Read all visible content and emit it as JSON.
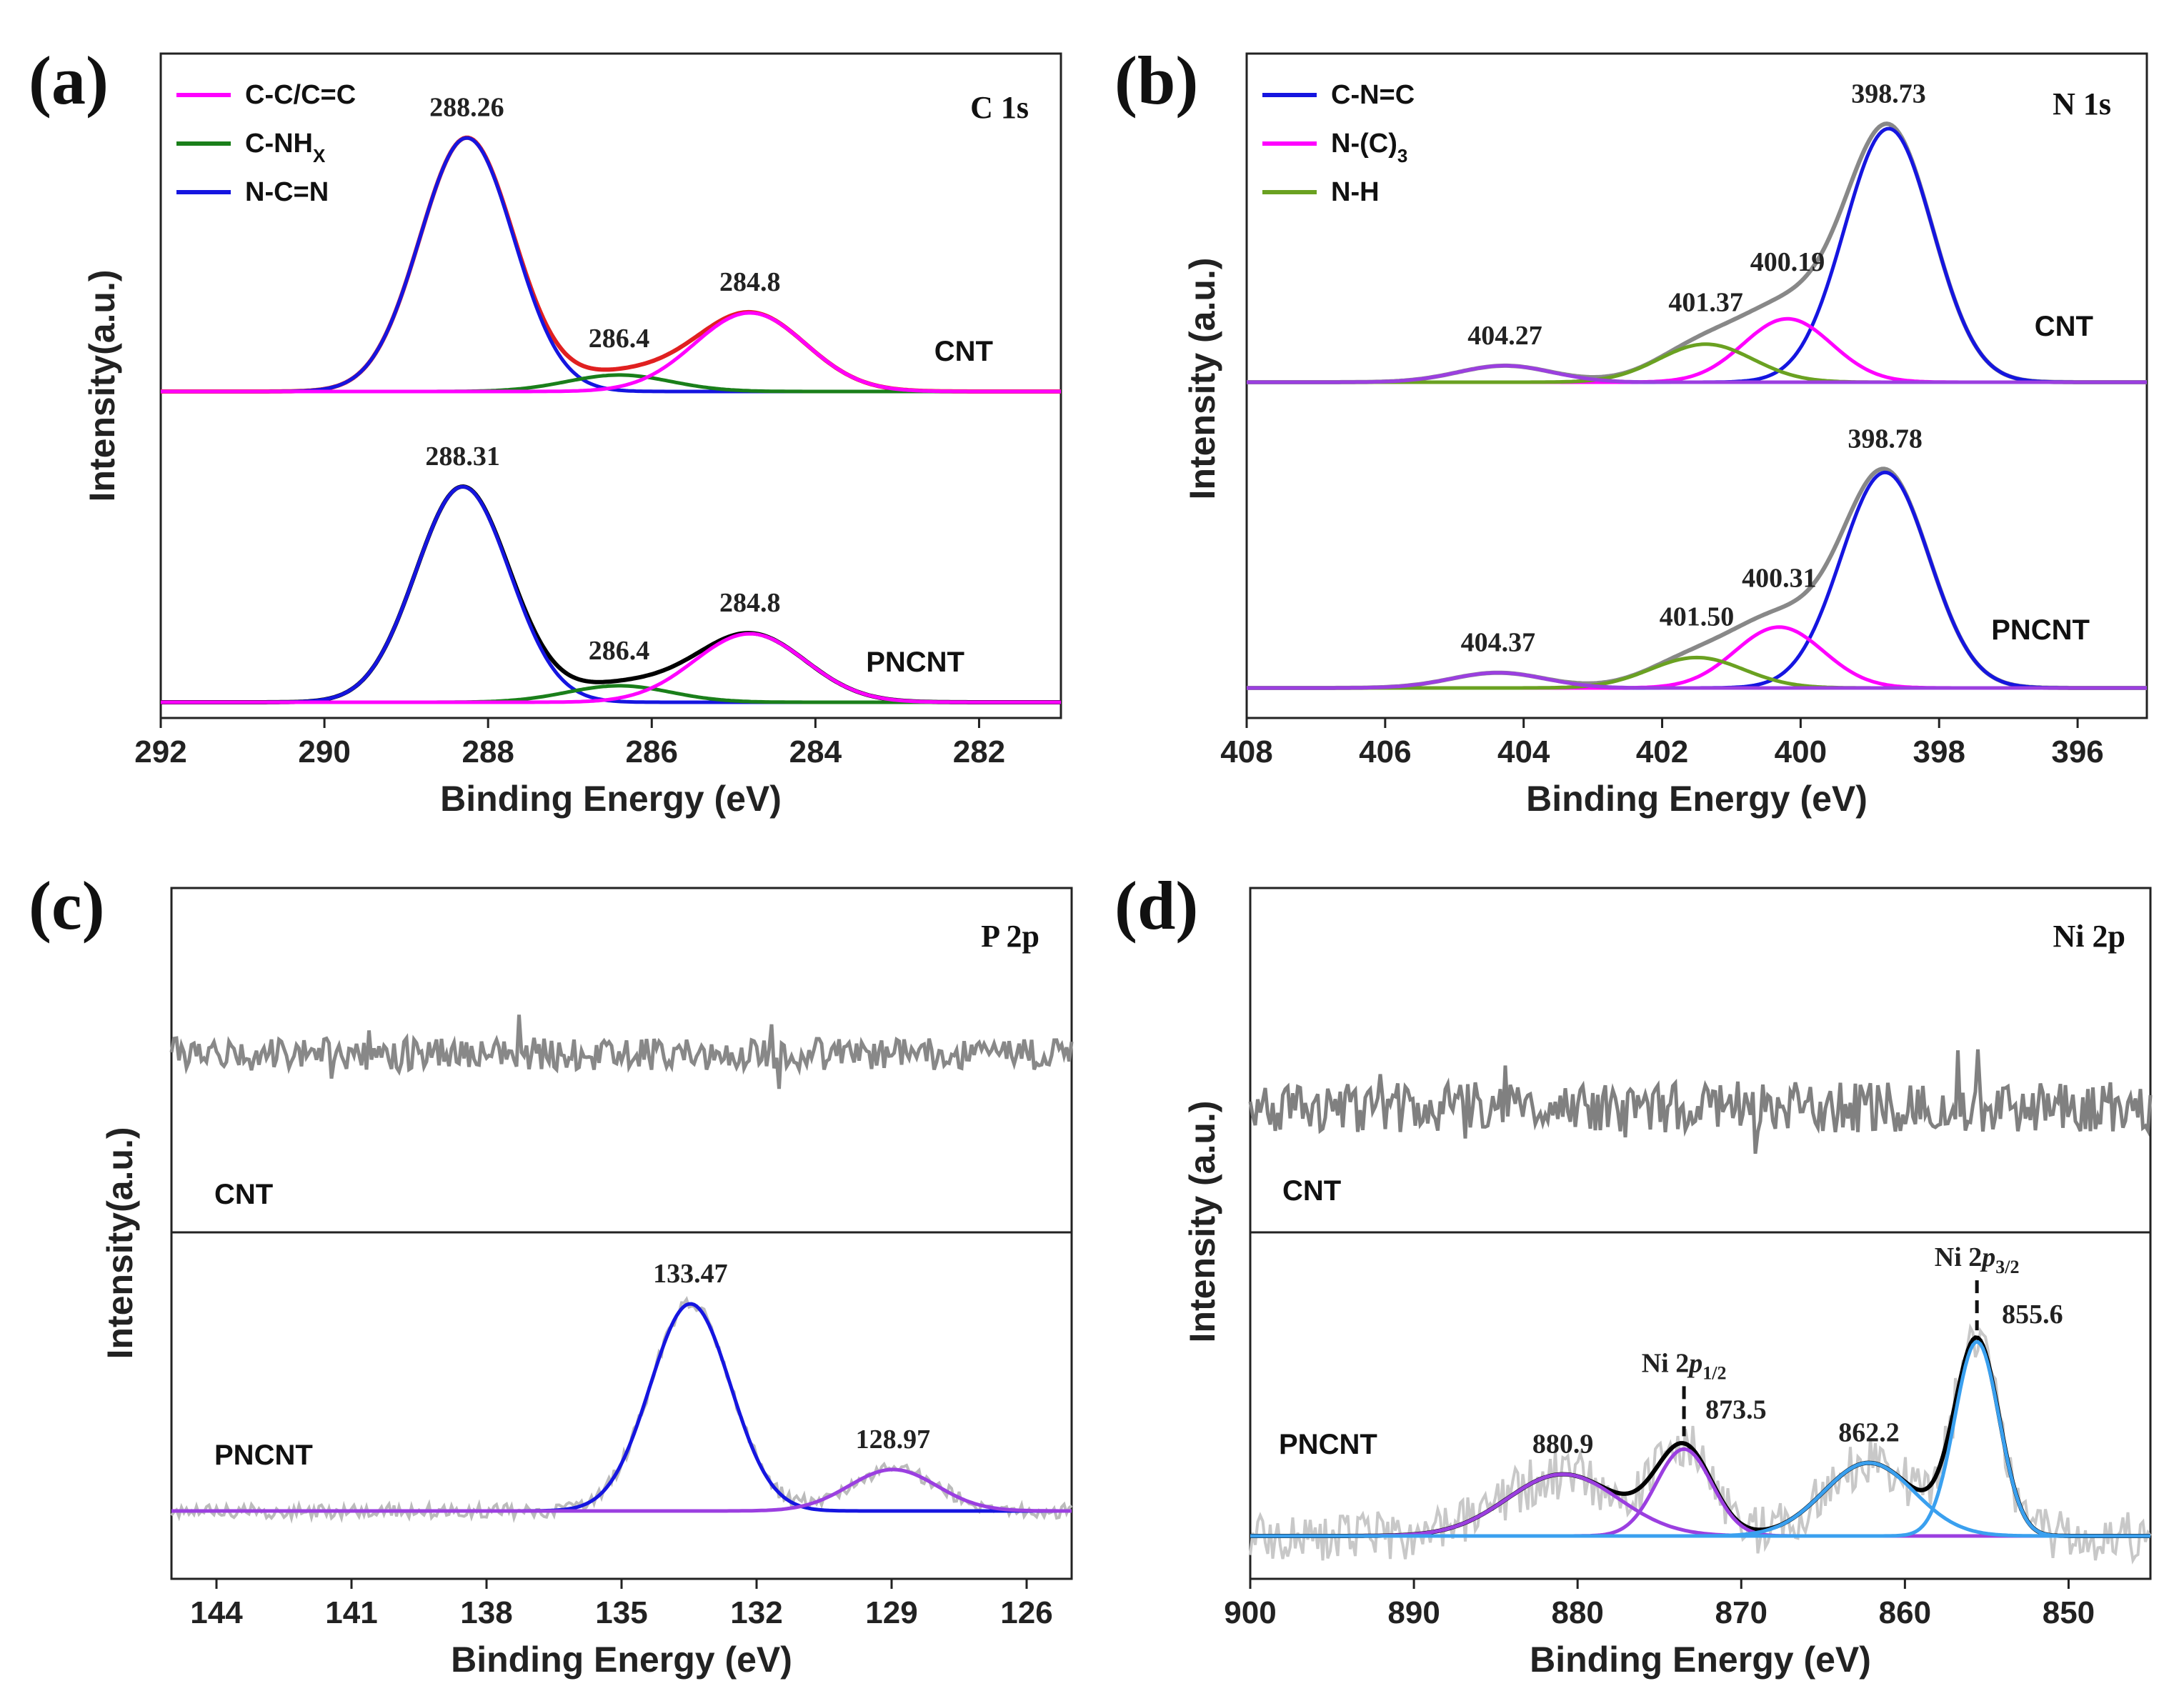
{
  "chart_data": [
    {
      "panel_label": "(a)",
      "core_level": "C 1s",
      "type": "line",
      "xlabel": "Binding Energy (eV)",
      "ylabel": "Intensity(a.u.)",
      "xlim": [
        292,
        281
      ],
      "xticks": [
        292,
        290,
        288,
        286,
        284,
        282
      ],
      "legend": [
        {
          "label": "C-C/C=C",
          "color": "#ff00ff"
        },
        {
          "label": "C-NH",
          "sub": "X",
          "color": "#1a7f1a"
        },
        {
          "label": "N-C=N",
          "color": "#1515e0"
        }
      ],
      "legend_position": "top-left",
      "samples": [
        {
          "name": "CNT",
          "envelope_color": "#e02020",
          "peaks": [
            {
              "center": 288.26,
              "amp": 1.0,
              "fwhm": 1.35,
              "color": "#1515e0",
              "label": "288.26"
            },
            {
              "center": 286.4,
              "amp": 0.065,
              "fwhm": 1.5,
              "color": "#1a7f1a",
              "label": "286.4"
            },
            {
              "center": 284.8,
              "amp": 0.31,
              "fwhm": 1.6,
              "color": "#ff00ff",
              "label": "284.8"
            }
          ]
        },
        {
          "name": "PNCNT",
          "envelope_color": "#000000",
          "peaks": [
            {
              "center": 288.31,
              "amp": 0.85,
              "fwhm": 1.35,
              "color": "#1515e0",
              "label": "288.31"
            },
            {
              "center": 286.4,
              "amp": 0.065,
              "fwhm": 1.5,
              "color": "#1a7f1a",
              "label": "286.4"
            },
            {
              "center": 284.8,
              "amp": 0.27,
              "fwhm": 1.6,
              "color": "#ff00ff",
              "label": "284.8"
            }
          ]
        }
      ]
    },
    {
      "panel_label": "(b)",
      "core_level": "N 1s",
      "type": "line",
      "xlabel": "Binding Energy (eV)",
      "ylabel": "Intensity (a.u.)",
      "xlim": [
        408,
        395
      ],
      "xticks": [
        408,
        406,
        404,
        402,
        400,
        398,
        396
      ],
      "legend": [
        {
          "label": "C-N=C",
          "color": "#1515e0"
        },
        {
          "label": "N-(C)",
          "sub": "3",
          "color": "#ff00ff"
        },
        {
          "label": "N-H",
          "color": "#6aa121"
        }
      ],
      "legend_position": "top-left",
      "samples": [
        {
          "name": "CNT",
          "envelope_color": "#888888",
          "peaks": [
            {
              "center": 398.73,
              "amp": 1.0,
              "fwhm": 1.5,
              "color": "#1515e0",
              "label": "398.73"
            },
            {
              "center": 400.19,
              "amp": 0.25,
              "fwhm": 1.5,
              "color": "#ff00ff",
              "label": "400.19"
            },
            {
              "center": 401.37,
              "amp": 0.15,
              "fwhm": 1.6,
              "color": "#6aa121",
              "label": "401.37"
            },
            {
              "center": 404.27,
              "amp": 0.065,
              "fwhm": 1.6,
              "color": "#9b3fe0",
              "label": "404.27"
            }
          ]
        },
        {
          "name": "PNCNT",
          "envelope_color": "#888888",
          "peaks": [
            {
              "center": 398.78,
              "amp": 0.85,
              "fwhm": 1.5,
              "color": "#1515e0",
              "label": "398.78"
            },
            {
              "center": 400.31,
              "amp": 0.24,
              "fwhm": 1.5,
              "color": "#ff00ff",
              "label": "400.31"
            },
            {
              "center": 401.5,
              "amp": 0.12,
              "fwhm": 1.6,
              "color": "#6aa121",
              "label": "401.50"
            },
            {
              "center": 404.37,
              "amp": 0.06,
              "fwhm": 1.6,
              "color": "#9b3fe0",
              "label": "404.37"
            }
          ]
        }
      ]
    },
    {
      "panel_label": "(c)",
      "core_level": "P 2p",
      "type": "line",
      "xlabel": "Binding Energy (eV)",
      "ylabel": "Intensity(a.u.)",
      "xlim": [
        145,
        125
      ],
      "xticks": [
        144,
        141,
        138,
        135,
        132,
        129,
        126
      ],
      "samples": [
        {
          "name": "CNT",
          "raw_color": "#888888",
          "peaks": []
        },
        {
          "name": "PNCNT",
          "raw_color": "#bbbbbb",
          "peaks": [
            {
              "center": 133.47,
              "amp": 1.0,
              "fwhm": 2.1,
              "color": "#1515e0",
              "label": "133.47"
            },
            {
              "center": 128.97,
              "amp": 0.2,
              "fwhm": 2.3,
              "color": "#9b3fe0",
              "label": "128.97"
            }
          ]
        }
      ]
    },
    {
      "panel_label": "(d)",
      "core_level": "Ni 2p",
      "type": "line",
      "xlabel": "Binding Energy (eV)",
      "ylabel": "Intensity (a.u.)",
      "xlim": [
        900,
        845
      ],
      "xticks": [
        900,
        890,
        880,
        870,
        860,
        850
      ],
      "samples": [
        {
          "name": "CNT",
          "raw_color": "#808080",
          "peaks": []
        },
        {
          "name": "PNCNT",
          "raw_color": "#c8c8c8",
          "envelope_color": "#000000",
          "peaks": [
            {
              "center": 880.9,
              "amp": 0.27,
              "fwhm": 8.0,
              "color": "#9b3fe0",
              "label": "880.9"
            },
            {
              "center": 873.5,
              "amp": 0.38,
              "fwhm": 4.0,
              "color": "#9b3fe0",
              "label": "873.5"
            },
            {
              "center": 862.2,
              "amp": 0.32,
              "fwhm": 6.5,
              "color": "#3aa0ef",
              "label": "862.2"
            },
            {
              "center": 855.6,
              "amp": 0.85,
              "fwhm": 3.2,
              "color": "#3aa0ef",
              "label": "855.6"
            }
          ],
          "annotations": [
            {
              "main": "Ni 2",
              "italic": "p",
              "sub": "1/2",
              "at": 873.5
            },
            {
              "main": "Ni 2",
              "italic": "p",
              "sub": "3/2",
              "at": 855.6
            }
          ]
        }
      ]
    }
  ]
}
